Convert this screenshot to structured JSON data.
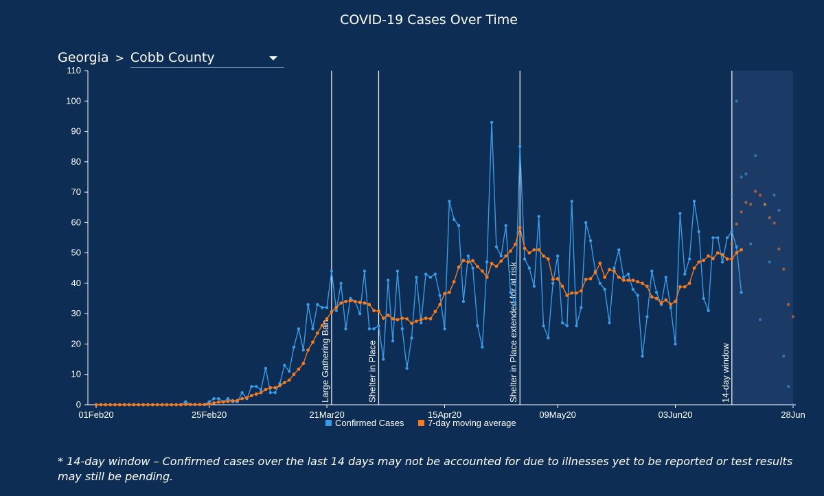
{
  "page": {
    "title": "COVID-19 Cases Over Time",
    "breadcrumb": {
      "state": "Georgia",
      "separator": ">",
      "county": "Cobb County"
    },
    "footnote": "* 14-day window – Confirmed cases over the last 14 days may not be accounted for due to illnesses yet to be reported or test results may still be pending."
  },
  "colors": {
    "background": "#0d2d54",
    "confirmed": "#3a9be6",
    "average": "#f47b20",
    "window_shade": "#1b3b66"
  },
  "chart_data": {
    "type": "line",
    "x_start": "2020-02-01",
    "x_end": "2020-06-28",
    "ylim": [
      0,
      110
    ],
    "y_ticks": [
      0,
      10,
      20,
      30,
      40,
      50,
      60,
      70,
      80,
      90,
      100,
      110
    ],
    "x_ticks": [
      {
        "date": "2020-02-01",
        "label": "01Feb20"
      },
      {
        "date": "2020-02-25",
        "label": "25Feb20"
      },
      {
        "date": "2020-03-21",
        "label": "21Mar20"
      },
      {
        "date": "2020-04-15",
        "label": "15Apr20"
      },
      {
        "date": "2020-05-09",
        "label": "09May20"
      },
      {
        "date": "2020-06-03",
        "label": "03Jun20"
      },
      {
        "date": "2020-06-28",
        "label": "28Jun"
      }
    ],
    "legend": [
      {
        "label": "Confirmed Cases",
        "color": "#3a9be6"
      },
      {
        "label": "7-day moving average",
        "color": "#f47b20"
      }
    ],
    "legend_position": "bottom",
    "events": [
      {
        "date": "2020-03-22",
        "label": "Large Gathering Ban"
      },
      {
        "date": "2020-04-01",
        "label": "Shelter in Place"
      },
      {
        "date": "2020-05-01",
        "label": "Shelter in Place extended for at risk"
      },
      {
        "date": "2020-06-15",
        "label": "14-day window"
      }
    ],
    "window_start": "2020-06-15",
    "window_end": "2020-06-28",
    "series": [
      {
        "name": "Confirmed Cases",
        "start": "2020-02-01",
        "values": [
          0,
          0,
          0,
          0,
          0,
          0,
          0,
          0,
          0,
          0,
          0,
          0,
          0,
          0,
          0,
          0,
          0,
          0,
          0,
          1,
          0,
          0,
          0,
          0,
          1,
          2,
          2,
          1,
          2,
          1,
          1,
          4,
          2,
          6,
          6,
          5,
          12,
          4,
          4,
          7,
          13,
          11,
          19,
          25,
          18,
          33,
          25,
          33,
          32,
          32,
          44,
          31,
          40,
          25,
          35,
          34,
          30,
          44,
          25,
          25,
          26,
          15,
          41,
          21,
          44,
          25,
          12,
          22,
          42,
          27,
          43,
          42,
          43,
          36,
          25,
          67,
          61,
          59,
          34,
          49,
          45,
          26,
          19,
          47,
          93,
          52,
          49,
          59,
          37,
          33,
          85,
          48,
          45,
          39,
          62,
          26,
          22,
          40,
          49,
          27,
          26,
          67,
          26,
          32,
          60,
          54,
          44,
          40,
          38,
          27,
          45,
          51,
          42,
          43,
          38,
          36,
          16,
          29,
          44,
          37,
          33,
          42,
          32,
          20,
          63,
          43,
          48,
          67,
          57,
          35,
          31,
          55,
          55,
          47,
          55,
          57,
          52,
          37
        ]
      },
      {
        "name": "7-day moving average",
        "start": "2020-02-01",
        "values": [
          0,
          0,
          0,
          0,
          0,
          0,
          0,
          0,
          0,
          0,
          0,
          0,
          0,
          0,
          0,
          0,
          0,
          0,
          0,
          0.1,
          0.1,
          0.1,
          0.1,
          0.1,
          0.3,
          0.6,
          0.9,
          0.9,
          1.1,
          1.3,
          1.4,
          2,
          2.3,
          3,
          3.5,
          4,
          5,
          5.6,
          5.6,
          6.3,
          7.3,
          8.1,
          10,
          11.7,
          13.6,
          18,
          20.6,
          23.6,
          26.1,
          28.3,
          30.6,
          32,
          33.5,
          34,
          34.3,
          34,
          33.7,
          33.5,
          33,
          31,
          30.9,
          28.5,
          29.5,
          28.3,
          28,
          28.5,
          28.3,
          26.8,
          27.5,
          28,
          28.5,
          28.3,
          30.7,
          33,
          36.6,
          37,
          40.5,
          45.3,
          47.5,
          47,
          47.4,
          45.5,
          44,
          42,
          46.5,
          45.6,
          47.3,
          49,
          50.6,
          52.8,
          58.3,
          51.5,
          50,
          51,
          51,
          49,
          48,
          41.3,
          41.5,
          39,
          36,
          36.8,
          36.8,
          37.5,
          41.3,
          41.5,
          43.5,
          46.6,
          42,
          44.5,
          44,
          42,
          41,
          41,
          41,
          40.5,
          40,
          39,
          35.5,
          35,
          33.5,
          34.5,
          33,
          34,
          38.8,
          38.8,
          40,
          45,
          47,
          47.5,
          49,
          48.1,
          50,
          49.4,
          48,
          48,
          50,
          51
        ]
      },
      {
        "name": "Confirmed Cases (14-day window)",
        "start": "2020-06-15",
        "values": [
          69,
          100,
          75,
          76,
          53,
          82,
          28,
          66,
          47,
          69,
          64,
          16,
          6,
          0
        ]
      },
      {
        "name": "7-day moving average (14-day window)",
        "start": "2020-06-15",
        "values": [
          53,
          59.5,
          63.5,
          66.6,
          66,
          70.3,
          69,
          66,
          61.6,
          59.8,
          51.3,
          44.6,
          33,
          29
        ]
      }
    ]
  }
}
